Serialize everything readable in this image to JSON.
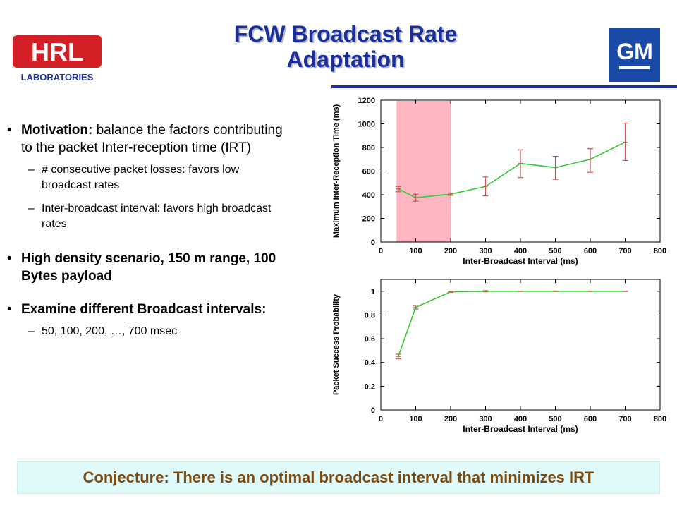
{
  "slide": {
    "title_line1": "FCW Broadcast Rate",
    "title_line2": "Adaptation",
    "logos": {
      "left_word": "HRL",
      "left_sub": "LABORATORIES",
      "right_word": "GM"
    }
  },
  "bullets": {
    "b1_bold": "Motivation:",
    "b1_text": " balance the factors contributing to the packet Inter-reception time (IRT)",
    "b1_sub1": "# consecutive packet losses: favors low broadcast rates",
    "b1_sub2": "Inter-broadcast interval: favors high broadcast rates",
    "b2": "High density scenario, 150 m range, 100 Bytes payload",
    "b3": "Examine different Broadcast intervals:",
    "b3_sub1": "50, 100, 200, …, 700 msec"
  },
  "conjecture": "Conjecture: There is an optimal broadcast interval that minimizes IRT",
  "colors": {
    "title": "#1a2f9c",
    "line": "#33cc33",
    "errorbar": "#cc5555",
    "highlight": "#ffb6c1",
    "conjecture_text": "#7a4a10",
    "conjecture_bg": "#e0fafa"
  },
  "chart_data": [
    {
      "type": "line",
      "xlabel": "Inter-Broadcast Interval (ms)",
      "ylabel": "Maximum Inter-Reception Time (ms)",
      "xlim": [
        0,
        800
      ],
      "ylim": [
        0,
        1200
      ],
      "xticks": [
        0,
        100,
        200,
        300,
        400,
        500,
        600,
        700,
        800
      ],
      "yticks": [
        0,
        200,
        400,
        600,
        800,
        1000,
        1200
      ],
      "x": [
        50,
        100,
        200,
        300,
        400,
        500,
        600,
        700
      ],
      "series": [
        {
          "values": [
            450,
            375,
            405,
            470,
            665,
            630,
            700,
            845
          ],
          "err_low": [
            425,
            345,
            395,
            390,
            545,
            530,
            590,
            690
          ],
          "err_high": [
            470,
            405,
            415,
            550,
            780,
            725,
            790,
            1005
          ]
        }
      ],
      "highlight_x": [
        45,
        200
      ],
      "grid": false
    },
    {
      "type": "line",
      "xlabel": "Inter-Broadcast Interval (ms)",
      "ylabel": "Packet Success Probability",
      "xlim": [
        0,
        800
      ],
      "ylim": [
        0,
        1.1
      ],
      "xticks": [
        0,
        100,
        200,
        300,
        400,
        500,
        600,
        700,
        800
      ],
      "yticks": [
        0,
        0.2,
        0.4,
        0.6,
        0.8,
        1
      ],
      "x": [
        50,
        100,
        200,
        300,
        400,
        500,
        600,
        700
      ],
      "series": [
        {
          "values": [
            0.45,
            0.865,
            0.995,
            1.0,
            1.0,
            1.0,
            1.0,
            1.0
          ],
          "err_low": [
            0.43,
            0.85,
            0.99,
            0.995,
            0.998,
            0.998,
            0.998,
            0.998
          ],
          "err_high": [
            0.47,
            0.88,
            1.0,
            1.005,
            1.002,
            1.002,
            1.002,
            1.002
          ]
        }
      ],
      "grid": false
    }
  ]
}
